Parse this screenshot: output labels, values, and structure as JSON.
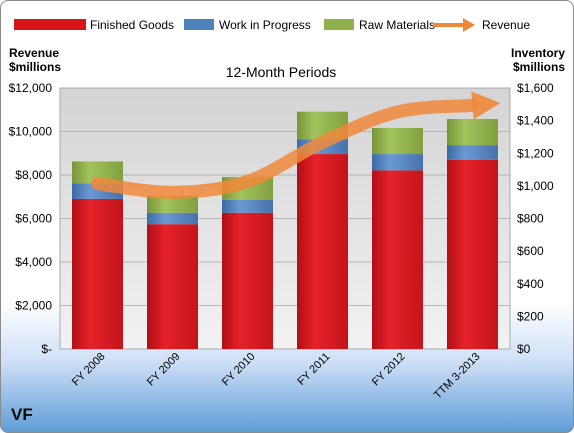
{
  "chart_data": {
    "type": "bar",
    "subtitle": "12-Month Periods",
    "company": "VF",
    "left_axis_label": [
      "Revenue",
      "$millions"
    ],
    "right_axis_label": [
      "Inventory",
      "$millions"
    ],
    "categories": [
      "FY 2008",
      "FY 2009",
      "FY 2010",
      "FY 2011",
      "FY 2012",
      "TTM 3-2013"
    ],
    "left_ticks": [
      "$-",
      "$2,000",
      "$4,000",
      "$6,000",
      "$8,000",
      "$10,000",
      "$12,000"
    ],
    "right_ticks": [
      "$0",
      "$200",
      "$400",
      "$600",
      "$800",
      "$1,000",
      "$1,200",
      "$1,400",
      "$1,600"
    ],
    "ylim_left": [
      0,
      12000
    ],
    "ylim_right": [
      0,
      1600
    ],
    "stacked": true,
    "series": [
      {
        "name": "Finished Goods",
        "color": "#d9151b",
        "axis": "right",
        "values": [
          920,
          765,
          835,
          1195,
          1095,
          1160
        ]
      },
      {
        "name": "Work in Progress",
        "color": "#4f81bd",
        "axis": "right",
        "values": [
          95,
          70,
          80,
          90,
          100,
          90
        ]
      },
      {
        "name": "Raw Materials",
        "color": "#8fb04a",
        "axis": "right",
        "values": [
          135,
          105,
          140,
          170,
          160,
          160
        ]
      },
      {
        "name": "Revenue",
        "color": "#f0883a",
        "axis": "left",
        "type": "line",
        "values": [
          7600,
          7200,
          7700,
          9500,
          10900,
          11200
        ]
      }
    ],
    "grid": true,
    "legend": "top"
  }
}
